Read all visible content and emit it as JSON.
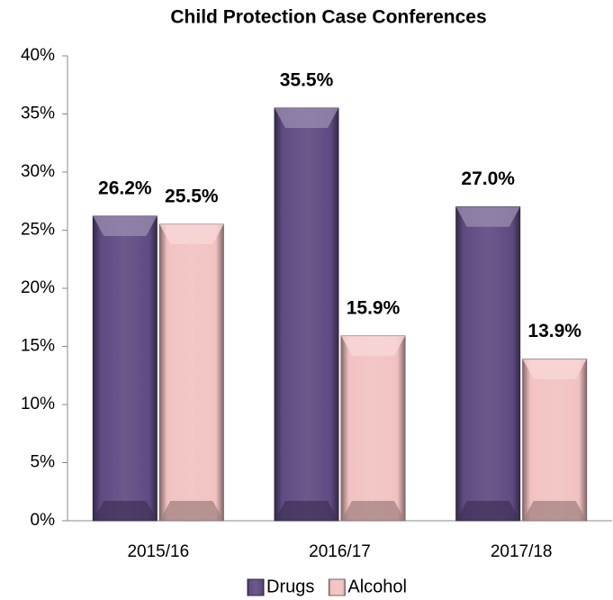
{
  "chart_data": {
    "type": "bar",
    "title": "Child Protection Case Conferences",
    "categories": [
      "2015/16",
      "2016/17",
      "2017/18"
    ],
    "series": [
      {
        "name": "Drugs",
        "color": "#5f4b82",
        "values": [
          26.2,
          35.5,
          27.0
        ],
        "value_labels": [
          "26.2%",
          "35.5%",
          "27.0%"
        ]
      },
      {
        "name": "Alcohol",
        "color": "#f2c2c2",
        "values": [
          25.5,
          15.9,
          13.9
        ],
        "value_labels": [
          "25.5%",
          "15.9%",
          "13.9%"
        ]
      }
    ],
    "ylim": [
      0,
      40
    ],
    "yticks": [
      {
        "value": 0,
        "label": "0%"
      },
      {
        "value": 5,
        "label": "5%"
      },
      {
        "value": 10,
        "label": "10%"
      },
      {
        "value": 15,
        "label": "15%"
      },
      {
        "value": 20,
        "label": "20%"
      },
      {
        "value": 25,
        "label": "25%"
      },
      {
        "value": 30,
        "label": "30%"
      },
      {
        "value": 35,
        "label": "35%"
      },
      {
        "value": 40,
        "label": "40%"
      }
    ],
    "grid": false,
    "legend": "bottom"
  }
}
